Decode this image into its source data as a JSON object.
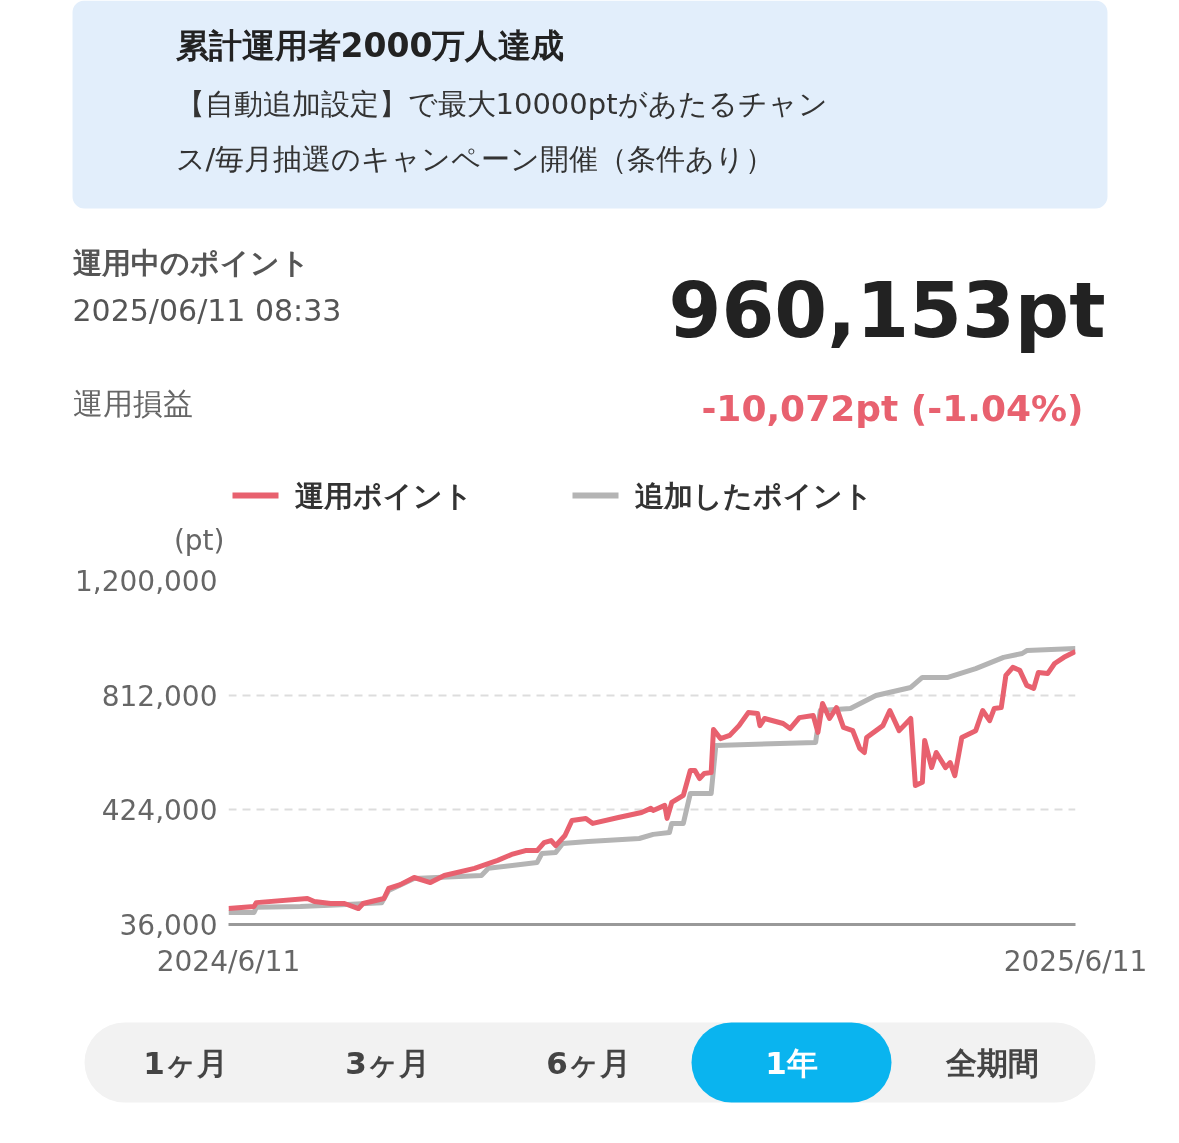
{
  "chart_data": {
    "type": "line",
    "title": "運用中のポイント",
    "subtitle": "2025/06/11 08:33",
    "ylabel": "(pt)",
    "annotations": [
      "累計運用者2000万人達成",
      "【自動追加設定】で最大10000ptがあたるチャン",
      "ス/毎月抽選のキャンペーン開催（条件あり）",
      "960,153pt",
      "運用損益",
      "-10,072pt (-1.04%)",
      "1ヶ月",
      "3ヶ月",
      "6ヶ月",
      "1年",
      "全期間"
    ],
    "xlim": [
      "2024-06-11",
      "2025-06-11"
    ],
    "xticks": [
      {
        "value": "2024-06-11",
        "label": "2024/6/11"
      },
      {
        "value": "2025-06-11",
        "label": "2025/6/11"
      }
    ],
    "ylim": [
      36000,
      1200000
    ],
    "yticks": [
      {
        "value": 36000,
        "label": "36,000"
      },
      {
        "value": 424000,
        "label": "424,000"
      },
      {
        "value": 812000,
        "label": "812,000"
      },
      {
        "value": 1200000,
        "label": "1,200,000"
      }
    ],
    "grid": "y",
    "legend": "top",
    "line_style": "solid",
    "marker": "none",
    "series": [
      {
        "name": "運用ポイント",
        "color": "#e8616f",
        "x": [
          "2024-06-11",
          "2024-06-22",
          "2024-06-23",
          "2024-07-15",
          "2024-07-18",
          "2024-07-25",
          "2024-07-31",
          "2024-08-06",
          "2024-08-08",
          "2024-08-17",
          "2024-08-19",
          "2024-08-24",
          "2024-08-30",
          "2024-09-06",
          "2024-09-12",
          "2024-09-25",
          "2024-10-05",
          "2024-10-11",
          "2024-10-17",
          "2024-10-22",
          "2024-10-25",
          "2024-10-28",
          "2024-10-30",
          "2024-11-03",
          "2024-11-06",
          "2024-11-12",
          "2024-11-15",
          "2024-11-26",
          "2024-12-06",
          "2024-12-10",
          "2024-12-11",
          "2024-12-16",
          "2024-12-17",
          "2024-12-19",
          "2024-12-24",
          "2024-12-27",
          "2024-12-29",
          "2024-12-31",
          "2025-01-02",
          "2025-01-05",
          "2025-01-06",
          "2025-01-09",
          "2025-01-13",
          "2025-01-17",
          "2025-01-21",
          "2025-01-25",
          "2025-01-26",
          "2025-01-28",
          "2025-02-05",
          "2025-02-08",
          "2025-02-12",
          "2025-02-18",
          "2025-02-20",
          "2025-02-22",
          "2025-02-25",
          "2025-02-28",
          "2025-03-03",
          "2025-03-07",
          "2025-03-10",
          "2025-03-12",
          "2025-03-13",
          "2025-03-20",
          "2025-03-23",
          "2025-03-27",
          "2025-04-01",
          "2025-04-03",
          "2025-04-06",
          "2025-04-07",
          "2025-04-10",
          "2025-04-12",
          "2025-04-16",
          "2025-04-18",
          "2025-04-20",
          "2025-04-23",
          "2025-04-29",
          "2025-05-02",
          "2025-05-05",
          "2025-05-07",
          "2025-05-10",
          "2025-05-12",
          "2025-05-15",
          "2025-05-18",
          "2025-05-21",
          "2025-05-24",
          "2025-05-26",
          "2025-05-30",
          "2025-06-02",
          "2025-06-06",
          "2025-06-11"
        ],
        "values": [
          90000,
          97000,
          110000,
          124000,
          114000,
          107000,
          107000,
          90000,
          107000,
          124000,
          158000,
          171000,
          195000,
          178000,
          202000,
          226000,
          253000,
          273000,
          286000,
          286000,
          313000,
          320000,
          303000,
          337000,
          388000,
          395000,
          378000,
          398000,
          415000,
          429000,
          422000,
          439000,
          395000,
          449000,
          473000,
          557000,
          557000,
          530000,
          547000,
          550000,
          696000,
          665000,
          676000,
          709000,
          753000,
          750000,
          709000,
          733000,
          716000,
          699000,
          736000,
          743000,
          686000,
          784000,
          733000,
          770000,
          703000,
          692000,
          632000,
          618000,
          669000,
          709000,
          760000,
          692000,
          733000,
          506000,
          517000,
          659000,
          567000,
          618000,
          567000,
          584000,
          540000,
          669000,
          692000,
          760000,
          726000,
          767000,
          770000,
          879000,
          906000,
          896000,
          845000,
          835000,
          889000,
          885000,
          919000,
          940000,
          960000
        ]
      },
      {
        "name": "追加したポイント",
        "color": "#b4b4b4",
        "x": [
          "2024-06-11",
          "2024-06-22",
          "2024-06-23",
          "2024-07-12",
          "2024-08-01",
          "2024-08-16",
          "2024-08-19",
          "2024-08-30",
          "2024-09-28",
          "2024-10-01",
          "2024-10-22",
          "2024-10-24",
          "2024-10-30",
          "2024-11-02",
          "2024-11-13",
          "2024-12-05",
          "2024-12-11",
          "2024-12-18",
          "2024-12-19",
          "2024-12-24",
          "2024-12-27",
          "2025-01-05",
          "2025-01-07",
          "2025-02-19",
          "2025-02-21",
          "2025-03-06",
          "2025-03-17",
          "2025-04-01",
          "2025-04-06",
          "2025-04-17",
          "2025-04-29",
          "2025-05-11",
          "2025-05-19",
          "2025-05-21",
          "2025-06-11"
        ],
        "values": [
          77000,
          77000,
          94000,
          97000,
          104000,
          110000,
          151000,
          192000,
          202000,
          226000,
          246000,
          276000,
          280000,
          310000,
          317000,
          327000,
          341000,
          347000,
          378000,
          378000,
          479000,
          479000,
          642000,
          652000,
          760000,
          767000,
          811000,
          838000,
          872000,
          872000,
          902000,
          940000,
          953000,
          963000,
          970000
        ]
      }
    ]
  }
}
